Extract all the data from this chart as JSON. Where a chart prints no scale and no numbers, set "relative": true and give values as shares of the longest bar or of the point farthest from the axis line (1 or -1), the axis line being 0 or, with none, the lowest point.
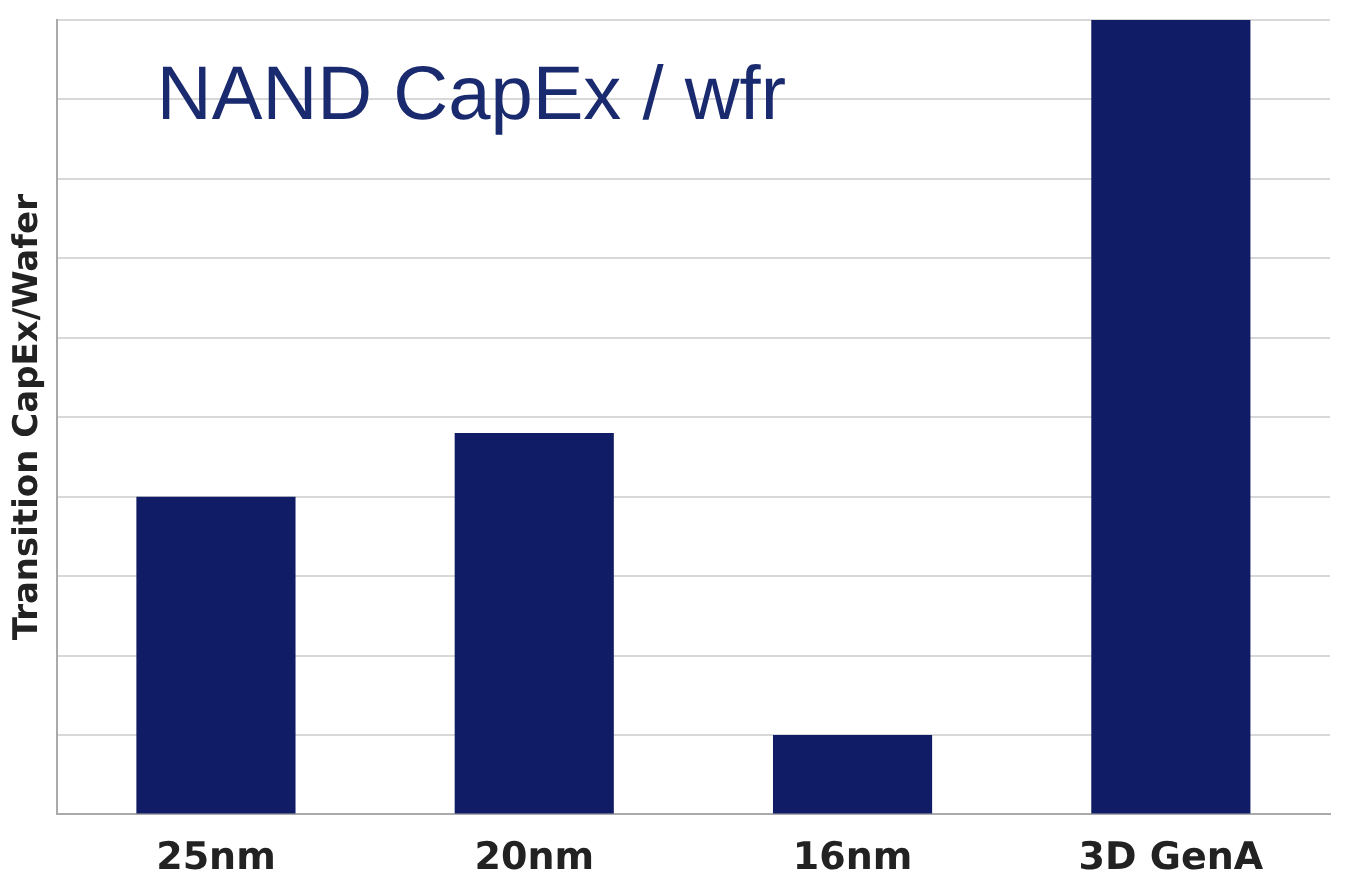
{
  "chart_data": {
    "type": "bar",
    "title": "NAND CapEx / wfr",
    "ylabel": "Transition CapEx/Wafer",
    "categories": [
      "25nm",
      "20nm",
      "16nm",
      "3D GenA"
    ],
    "values": [
      0.4,
      0.48,
      0.1,
      1
    ],
    "color": "#111c66",
    "relative": true,
    "grid": "y",
    "legend": false
  }
}
